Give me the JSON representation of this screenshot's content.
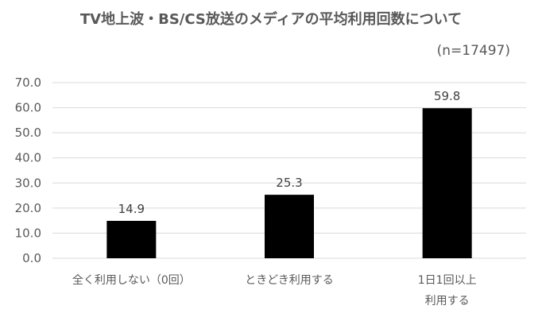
{
  "chart_data": {
    "type": "bar",
    "title": "TV地上波・BS/CS放送のメディアの平均利用回数について",
    "subtitle": "(n=17497)",
    "categories": [
      [
        "全く利用しない（0回）"
      ],
      [
        "ときどき利用する"
      ],
      [
        "1日1回以上",
        "利用する"
      ]
    ],
    "values": [
      14.9,
      25.3,
      59.8
    ],
    "data_labels": [
      "14.9",
      "25.3",
      "59.8"
    ],
    "ylim": [
      0,
      70
    ],
    "yticks": [
      "0.0",
      "10.0",
      "20.0",
      "30.0",
      "40.0",
      "50.0",
      "60.0",
      "70.0"
    ],
    "grid": true,
    "bar_color": "#000000",
    "grid_color": "#d9d9d9"
  }
}
